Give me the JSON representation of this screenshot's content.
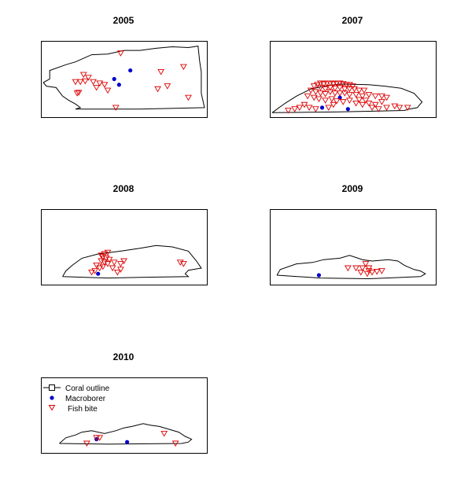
{
  "colors": {
    "outline": "#000000",
    "macroborer": "#0000cc",
    "fish_bite": "#dd0000"
  },
  "legend": {
    "items": [
      {
        "label": "Coral outline",
        "symbol": "line-square"
      },
      {
        "label": "Macroborer",
        "symbol": "filled-circle"
      },
      {
        "label": "Fish bite",
        "symbol": "open-triangle-down"
      }
    ]
  },
  "chart_data": [
    {
      "type": "scatter",
      "title": "2005",
      "xlim": [
        0,
        100
      ],
      "ylim": [
        0,
        100
      ],
      "outline": [
        [
          0,
          45
        ],
        [
          4,
          50
        ],
        [
          4,
          62
        ],
        [
          14,
          70
        ],
        [
          20,
          74
        ],
        [
          26,
          80
        ],
        [
          30,
          84
        ],
        [
          40,
          85
        ],
        [
          50,
          90
        ],
        [
          60,
          90
        ],
        [
          70,
          93
        ],
        [
          80,
          95
        ],
        [
          90,
          94
        ],
        [
          96,
          96
        ],
        [
          97,
          75
        ],
        [
          98,
          60
        ],
        [
          98,
          30
        ],
        [
          100,
          10
        ],
        [
          60,
          8
        ],
        [
          20,
          8
        ],
        [
          23,
          10
        ],
        [
          20,
          15
        ],
        [
          16,
          20
        ],
        [
          12,
          26
        ],
        [
          10,
          32
        ],
        [
          8,
          38
        ],
        [
          2,
          40
        ],
        [
          0,
          45
        ]
      ],
      "series": [
        {
          "name": "Macroborer",
          "marker": "circle",
          "points": [
            [
              54,
              62
            ],
            [
              44,
              50
            ],
            [
              47,
              42
            ]
          ]
        },
        {
          "name": "Fish bite",
          "marker": "triangle",
          "points": [
            [
              48,
              86
            ],
            [
              73,
              60
            ],
            [
              87,
              67
            ],
            [
              25,
              56
            ],
            [
              28,
              52
            ],
            [
              26,
              47
            ],
            [
              23,
              46
            ],
            [
              31,
              46
            ],
            [
              35,
              44
            ],
            [
              38,
              42
            ],
            [
              33,
              38
            ],
            [
              40,
              34
            ],
            [
              71,
              36
            ],
            [
              77,
              40
            ],
            [
              45,
              10
            ],
            [
              90,
              24
            ],
            [
              20,
              46
            ],
            [
              21,
              30
            ],
            [
              22,
              31
            ]
          ]
        }
      ]
    },
    {
      "type": "scatter",
      "title": "2007",
      "xlim": [
        0,
        100
      ],
      "ylim": [
        0,
        100
      ],
      "outline": [
        [
          0,
          3
        ],
        [
          8,
          16
        ],
        [
          15,
          26
        ],
        [
          24,
          36
        ],
        [
          32,
          40
        ],
        [
          42,
          43
        ],
        [
          60,
          42
        ],
        [
          70,
          40
        ],
        [
          80,
          37
        ],
        [
          88,
          30
        ],
        [
          93,
          18
        ],
        [
          90,
          10
        ],
        [
          85,
          8
        ],
        [
          82,
          6
        ],
        [
          40,
          4
        ],
        [
          0,
          3
        ]
      ],
      "series": [
        {
          "name": "Macroborer",
          "marker": "circle",
          "points": [
            [
              42,
              24
            ],
            [
              31,
              10
            ],
            [
              47,
              8
            ]
          ]
        },
        {
          "name": "Fish bite",
          "marker": "triangle",
          "points": [
            [
              26,
              40
            ],
            [
              28,
              42
            ],
            [
              30,
              44
            ],
            [
              32,
              43
            ],
            [
              34,
              44
            ],
            [
              36,
              44
            ],
            [
              38,
              43
            ],
            [
              40,
              44
            ],
            [
              42,
              44
            ],
            [
              44,
              43
            ],
            [
              46,
              42
            ],
            [
              48,
              42
            ],
            [
              50,
              40
            ],
            [
              30,
              38
            ],
            [
              33,
              36
            ],
            [
              36,
              38
            ],
            [
              39,
              37
            ],
            [
              42,
              38
            ],
            [
              45,
              36
            ],
            [
              48,
              36
            ],
            [
              51,
              36
            ],
            [
              54,
              34
            ],
            [
              57,
              34
            ],
            [
              24,
              34
            ],
            [
              27,
              32
            ],
            [
              30,
              30
            ],
            [
              33,
              29
            ],
            [
              36,
              32
            ],
            [
              39,
              30
            ],
            [
              42,
              30
            ],
            [
              45,
              30
            ],
            [
              48,
              28
            ],
            [
              52,
              28
            ],
            [
              56,
              26
            ],
            [
              60,
              28
            ],
            [
              64,
              26
            ],
            [
              68,
              26
            ],
            [
              71,
              24
            ],
            [
              22,
              26
            ],
            [
              26,
              24
            ],
            [
              29,
              22
            ],
            [
              33,
              20
            ],
            [
              37,
              22
            ],
            [
              40,
              19
            ],
            [
              44,
              18
            ],
            [
              48,
              20
            ],
            [
              52,
              16
            ],
            [
              56,
              14
            ],
            [
              60,
              16
            ],
            [
              64,
              14
            ],
            [
              68,
              18
            ],
            [
              71,
              10
            ],
            [
              76,
              12
            ],
            [
              79,
              10
            ],
            [
              84,
              10
            ],
            [
              20,
              14
            ],
            [
              17,
              10
            ],
            [
              14,
              8
            ],
            [
              10,
              6
            ],
            [
              23,
              10
            ],
            [
              27,
              8
            ],
            [
              38,
              14
            ],
            [
              35,
              10
            ],
            [
              62,
              10
            ],
            [
              66,
              8
            ],
            [
              54,
              21
            ],
            [
              58,
              20
            ]
          ]
        }
      ]
    },
    {
      "type": "scatter",
      "title": "2008",
      "xlim": [
        0,
        100
      ],
      "ylim": [
        0,
        100
      ],
      "outline": [
        [
          12,
          8
        ],
        [
          14,
          16
        ],
        [
          18,
          24
        ],
        [
          24,
          34
        ],
        [
          34,
          40
        ],
        [
          48,
          44
        ],
        [
          60,
          48
        ],
        [
          70,
          52
        ],
        [
          80,
          50
        ],
        [
          90,
          44
        ],
        [
          95,
          30
        ],
        [
          98,
          20
        ],
        [
          90,
          17
        ],
        [
          88,
          12
        ],
        [
          90,
          8
        ],
        [
          60,
          7
        ],
        [
          40,
          6
        ],
        [
          12,
          8
        ]
      ],
      "series": [
        {
          "name": "Macroborer",
          "marker": "circle",
          "points": [
            [
              34,
              12
            ]
          ]
        },
        {
          "name": "Fish bite",
          "marker": "triangle",
          "points": [
            [
              36,
              38
            ],
            [
              38,
              40
            ],
            [
              40,
              42
            ],
            [
              37,
              36
            ],
            [
              39,
              34
            ],
            [
              41,
              32
            ],
            [
              36,
              30
            ],
            [
              38,
              28
            ],
            [
              40,
              26
            ],
            [
              33,
              24
            ],
            [
              37,
              22
            ],
            [
              35,
              20
            ],
            [
              44,
              28
            ],
            [
              48,
              26
            ],
            [
              50,
              30
            ],
            [
              43,
              20
            ],
            [
              46,
              14
            ],
            [
              48,
              18
            ],
            [
              30,
              14
            ],
            [
              32,
              16
            ],
            [
              85,
              28
            ],
            [
              87,
              26
            ]
          ]
        }
      ]
    },
    {
      "type": "scatter",
      "title": "2009",
      "xlim": [
        0,
        100
      ],
      "ylim": [
        0,
        100
      ],
      "outline": [
        [
          3,
          10
        ],
        [
          5,
          18
        ],
        [
          15,
          26
        ],
        [
          25,
          28
        ],
        [
          32,
          32
        ],
        [
          42,
          34
        ],
        [
          48,
          38
        ],
        [
          56,
          32
        ],
        [
          62,
          30
        ],
        [
          72,
          32
        ],
        [
          78,
          30
        ],
        [
          82,
          24
        ],
        [
          88,
          18
        ],
        [
          92,
          16
        ],
        [
          95,
          12
        ],
        [
          92,
          8
        ],
        [
          60,
          5
        ],
        [
          30,
          6
        ],
        [
          3,
          10
        ]
      ],
      "series": [
        {
          "name": "Macroborer",
          "marker": "circle",
          "points": [
            [
              29,
              10
            ]
          ]
        },
        {
          "name": "Fish bite",
          "marker": "triangle",
          "points": [
            [
              47,
              20
            ],
            [
              52,
              20
            ],
            [
              56,
              20
            ],
            [
              58,
              26
            ],
            [
              60,
              20
            ],
            [
              62,
              14
            ],
            [
              65,
              15
            ],
            [
              68,
              16
            ],
            [
              59,
              12
            ],
            [
              55,
              14
            ],
            [
              60,
              16
            ]
          ]
        }
      ]
    },
    {
      "type": "scatter",
      "title": "2010",
      "xlim": [
        0,
        100
      ],
      "ylim": [
        0,
        100
      ],
      "outline": [
        [
          10,
          10
        ],
        [
          14,
          18
        ],
        [
          20,
          22
        ],
        [
          24,
          26
        ],
        [
          30,
          28
        ],
        [
          38,
          24
        ],
        [
          45,
          28
        ],
        [
          50,
          32
        ],
        [
          55,
          34
        ],
        [
          62,
          38
        ],
        [
          66,
          36
        ],
        [
          72,
          34
        ],
        [
          78,
          30
        ],
        [
          84,
          26
        ],
        [
          88,
          20
        ],
        [
          92,
          16
        ],
        [
          90,
          12
        ],
        [
          86,
          10
        ],
        [
          40,
          9
        ],
        [
          10,
          10
        ]
      ],
      "series": [
        {
          "name": "Macroborer",
          "marker": "circle",
          "points": [
            [
              33,
              16
            ],
            [
              52,
              12
            ]
          ]
        },
        {
          "name": "Fish bite",
          "marker": "triangle",
          "points": [
            [
              33,
              18
            ],
            [
              35,
              18
            ],
            [
              27,
              10
            ],
            [
              75,
              24
            ],
            [
              82,
              10
            ]
          ]
        }
      ]
    }
  ]
}
